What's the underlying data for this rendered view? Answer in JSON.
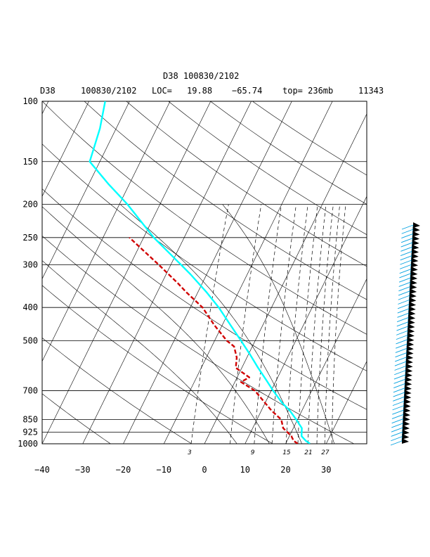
{
  "chart_data": {
    "type": "line",
    "title": "D38 100830/2102",
    "subtitle": {
      "station": "D38",
      "datetime": "100830/2102",
      "loc_label": "LOC=",
      "lat": "19.88",
      "lon": "−65.74",
      "top": "top= 236mb",
      "number": "11343"
    },
    "pressure_ticks": [
      100,
      150,
      200,
      250,
      300,
      400,
      500,
      700,
      850,
      925,
      1000
    ],
    "temp_ticks": [
      -40,
      -30,
      -20,
      -10,
      0,
      10,
      20,
      30
    ],
    "temp_range": [
      -40,
      40
    ],
    "pressure_range": [
      1000,
      100
    ],
    "mixing_ratio_labels": [
      "3",
      "9",
      "15",
      "21",
      "27"
    ],
    "series": [
      {
        "color": "#00ffff",
        "points": [
          [
            1000,
            26.0
          ],
          [
            980,
            24.6
          ],
          [
            950,
            23.0
          ],
          [
            900,
            22.1
          ],
          [
            850,
            19.7
          ],
          [
            800,
            17.0
          ],
          [
            760,
            14.2
          ],
          [
            700,
            10.5
          ],
          [
            650,
            7.4
          ],
          [
            600,
            4.0
          ],
          [
            550,
            0.5
          ],
          [
            500,
            -3.5
          ],
          [
            450,
            -8.0
          ],
          [
            400,
            -13.0
          ],
          [
            360,
            -18.0
          ],
          [
            320,
            -24.0
          ],
          [
            300,
            -27.5
          ],
          [
            250,
            -37.5
          ],
          [
            200,
            -48.0
          ],
          [
            175,
            -55.0
          ],
          [
            150,
            -62.5
          ],
          [
            120,
            -64.0
          ],
          [
            100,
            -66.0
          ]
        ]
      },
      {
        "color": "#d00000",
        "points": [
          [
            1000,
            23.0
          ],
          [
            980,
            21.6
          ],
          [
            950,
            20.5
          ],
          [
            900,
            17.5
          ],
          [
            850,
            16.0
          ],
          [
            800,
            12.5
          ],
          [
            760,
            10.0
          ],
          [
            700,
            6.0
          ],
          [
            660,
            1.5
          ],
          [
            640,
            3.0
          ],
          [
            600,
            -1.5
          ],
          [
            560,
            -2.5
          ],
          [
            520,
            -4.5
          ],
          [
            500,
            -7.0
          ],
          [
            450,
            -12.0
          ],
          [
            400,
            -17.0
          ],
          [
            360,
            -23.0
          ],
          [
            340,
            -26.0
          ],
          [
            300,
            -33.0
          ],
          [
            250,
            -43.5
          ]
        ]
      }
    ],
    "wind_barbs": {
      "color": "#00a0e0",
      "levels": 50
    }
  }
}
